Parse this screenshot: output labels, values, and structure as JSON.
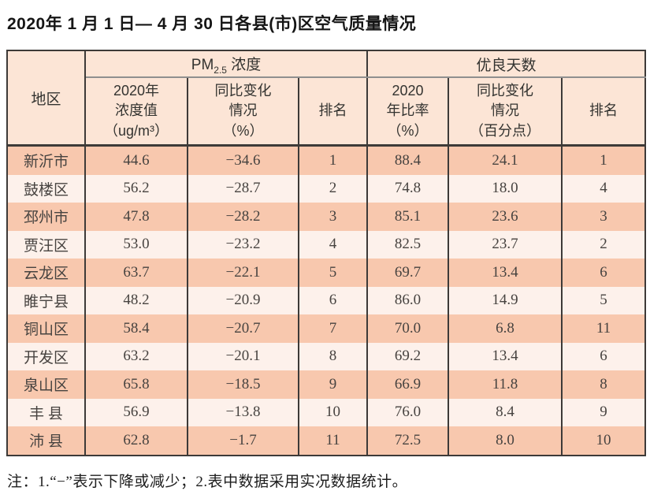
{
  "title": "2020年 1 月 1 日— 4 月 30 日各县(市)区空气质量情况",
  "table": {
    "corner_header": "地区",
    "pm_group": {
      "prefix": "PM",
      "sub": "2.5",
      "suffix": " 浓度"
    },
    "good_group": "优良天数",
    "subheaders": [
      "2020年\n浓度值\n（ug/m³）",
      "同比变化\n情况\n（%）",
      "排名",
      "2020\n年比率\n（%）",
      "同比变化\n情况\n（百分点）",
      "排名"
    ],
    "rows": [
      {
        "region": "新沂市",
        "pm_value": "44.6",
        "pm_change": "−34.6",
        "pm_rank": "1",
        "good_ratio": "88.4",
        "good_change": "24.1",
        "good_rank": "1"
      },
      {
        "region": "鼓楼区",
        "pm_value": "56.2",
        "pm_change": "−28.7",
        "pm_rank": "2",
        "good_ratio": "74.8",
        "good_change": "18.0",
        "good_rank": "4"
      },
      {
        "region": "邳州市",
        "pm_value": "47.8",
        "pm_change": "−28.2",
        "pm_rank": "3",
        "good_ratio": "85.1",
        "good_change": "23.6",
        "good_rank": "3"
      },
      {
        "region": "贾汪区",
        "pm_value": "53.0",
        "pm_change": "−23.2",
        "pm_rank": "4",
        "good_ratio": "82.5",
        "good_change": "23.7",
        "good_rank": "2"
      },
      {
        "region": "云龙区",
        "pm_value": "63.7",
        "pm_change": "−22.1",
        "pm_rank": "5",
        "good_ratio": "69.7",
        "good_change": "13.4",
        "good_rank": "6"
      },
      {
        "region": "睢宁县",
        "pm_value": "48.2",
        "pm_change": "−20.9",
        "pm_rank": "6",
        "good_ratio": "86.0",
        "good_change": "14.9",
        "good_rank": "5"
      },
      {
        "region": "铜山区",
        "pm_value": "58.4",
        "pm_change": "−20.7",
        "pm_rank": "7",
        "good_ratio": "70.0",
        "good_change": "6.8",
        "good_rank": "11"
      },
      {
        "region": "开发区",
        "pm_value": "63.2",
        "pm_change": "−20.1",
        "pm_rank": "8",
        "good_ratio": "69.2",
        "good_change": "13.4",
        "good_rank": "6"
      },
      {
        "region": "泉山区",
        "pm_value": "65.8",
        "pm_change": "−18.5",
        "pm_rank": "9",
        "good_ratio": "66.9",
        "good_change": "11.8",
        "good_rank": "8"
      },
      {
        "region": "丰 县",
        "pm_value": "56.9",
        "pm_change": "−13.8",
        "pm_rank": "10",
        "good_ratio": "76.0",
        "good_change": "8.4",
        "good_rank": "9"
      },
      {
        "region": "沛 县",
        "pm_value": "62.8",
        "pm_change": "−1.7",
        "pm_rank": "11",
        "good_ratio": "72.5",
        "good_change": "8.0",
        "good_rank": "10"
      }
    ]
  },
  "footnote": "注：1.“−”表示下降或减少；2.表中数据采用实况数据统计。"
}
